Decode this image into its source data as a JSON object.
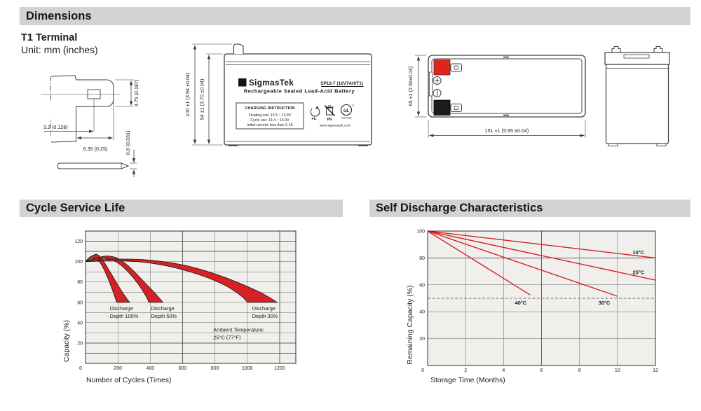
{
  "colors": {
    "header_bar_bg": "#d2d2d2",
    "chart_bg": "#f0efec",
    "grid": "#636363",
    "red": "#d42125",
    "terminal_red": "#e2231a",
    "terminal_black": "#1c1c1c",
    "drawing_line": "#3d3d3d"
  },
  "title_bars": {
    "dimensions": "Dimensions",
    "cycle": "Cycle Service Life",
    "self_discharge": "Self Discharge Characteristics"
  },
  "dimensions_section": {
    "subtitle": "T1 Terminal",
    "unit_note": "Unit: mm (inches)",
    "terminal_drawing": {
      "height": "4.75 (0.187)",
      "hole_offset": "3.2 (0.126)",
      "width": "6.35 (0.25)",
      "thickness": "0.8 (0.031)"
    },
    "front_view": {
      "overall_height": "100 ±1 (3.94 ±0.04)",
      "case_height": "94 ±1 (3.70 ±0.04)"
    },
    "battery_label": {
      "logo_glyph": "Σ",
      "brand": "SigmasTek",
      "model": "SP12-7 (12V7AH/T1)",
      "type": "Rechargeable Sealed Lead-Acid Battery",
      "charging_title": "CHARGING INSTRUCTION",
      "charging_lines": [
        "Floating use: 13.5 ~ 13.8V",
        "Cycle use: 14.4 ~ 15.0V",
        "Initial current: less than 2.1A"
      ],
      "recycle_label": "Pb.",
      "bin_label": "Pb",
      "ul_text": "UL",
      "ul_reg": "®",
      "ul_code": "MH47829",
      "website": "www.sigmastek.com"
    },
    "top_view": {
      "width": "65 ±1 (2.56±0.04)",
      "length": "151 ±1 (5.95 ±0.04)"
    }
  },
  "chart_data": [
    {
      "type": "area",
      "title": "Cycle Service Life",
      "xlabel": "Number of Cycles (Times)",
      "ylabel": "Capacity (%)",
      "xlim": [
        0,
        1300
      ],
      "ylim": [
        0,
        130
      ],
      "x_grid_step": 200,
      "y_grid_step": 10,
      "x_ticks": [
        200,
        400,
        600,
        800,
        1000,
        1200
      ],
      "y_ticks": [
        20,
        40,
        60,
        80,
        100,
        120
      ],
      "origin_label": "0",
      "grid": true,
      "legend_position": "none",
      "series": [
        {
          "name": "Discharge Depth 100%",
          "upper": [
            [
              0,
              100
            ],
            [
              20,
              103.5
            ],
            [
              45,
              106
            ],
            [
              70,
              107
            ],
            [
              95,
              104
            ],
            [
              125,
              97
            ],
            [
              155,
              89
            ],
            [
              200,
              77
            ],
            [
              240,
              67
            ],
            [
              272,
              60
            ]
          ],
          "lower": [
            [
              0,
              100
            ],
            [
              18,
              102
            ],
            [
              40,
              103.5
            ],
            [
              65,
              103
            ],
            [
              90,
              99
            ],
            [
              115,
              92
            ],
            [
              140,
              83
            ],
            [
              162,
              74
            ],
            [
              180,
              66
            ],
            [
              193,
              60
            ]
          ]
        },
        {
          "name": "Discharge Depth 50%",
          "upper": [
            [
              0,
              100
            ],
            [
              40,
              102.5
            ],
            [
              90,
              104.5
            ],
            [
              140,
              105.5
            ],
            [
              195,
              103.5
            ],
            [
              255,
              97
            ],
            [
              315,
              88
            ],
            [
              375,
              78
            ],
            [
              435,
              68
            ],
            [
              478,
              60
            ]
          ],
          "lower": [
            [
              0,
              100
            ],
            [
              35,
              101.5
            ],
            [
              80,
              102.5
            ],
            [
              125,
              103
            ],
            [
              175,
              101
            ],
            [
              230,
              95
            ],
            [
              285,
              86
            ],
            [
              330,
              77
            ],
            [
              370,
              67
            ],
            [
              392,
              60
            ]
          ]
        },
        {
          "name": "Discharge Depth 30%",
          "upper": [
            [
              0,
              100
            ],
            [
              80,
              101.5
            ],
            [
              200,
              102.5
            ],
            [
              350,
              102
            ],
            [
              500,
              99.5
            ],
            [
              650,
              95
            ],
            [
              800,
              88
            ],
            [
              950,
              79
            ],
            [
              1090,
              69
            ],
            [
              1185,
              60
            ]
          ],
          "lower": [
            [
              0,
              100
            ],
            [
              70,
              100.5
            ],
            [
              180,
              101
            ],
            [
              320,
              100
            ],
            [
              460,
              97
            ],
            [
              600,
              92
            ],
            [
              740,
              85
            ],
            [
              870,
              76
            ],
            [
              965,
              66
            ],
            [
              1000,
              60
            ]
          ]
        }
      ],
      "annotations": [
        {
          "lines": [
            "Discharge",
            "Depth 100%"
          ],
          "x": 150,
          "y": 57
        },
        {
          "lines": [
            "Discharge",
            "Depth 50%"
          ],
          "x": 405,
          "y": 57
        },
        {
          "lines": [
            "Discharge",
            "Depth 30%"
          ],
          "x": 1030,
          "y": 57
        },
        {
          "lines": [
            "Ambient Temperature:",
            "25°C (77°F)"
          ],
          "x": 790,
          "y": 36
        }
      ]
    },
    {
      "type": "line",
      "title": "Self Discharge Characteristics",
      "xlabel": "Storage Time (Months)",
      "ylabel": "Remaining Capacity (%)",
      "xlim": [
        0,
        12
      ],
      "ylim": [
        0,
        100
      ],
      "x_grid_step": 2,
      "y_grid_step": 20,
      "x_ticks": [
        2,
        4,
        6,
        8,
        10,
        12
      ],
      "y_ticks": [
        20,
        40,
        60,
        80,
        100
      ],
      "origin_label": "0",
      "grid": true,
      "legend_position": "inline-labels",
      "dashed_line_y": 50,
      "series": [
        {
          "name": "10°C",
          "points": [
            [
              0,
              100
            ],
            [
              12,
              80
            ]
          ],
          "label_pos": [
            10.8,
            84.5
          ]
        },
        {
          "name": "25°C",
          "points": [
            [
              0,
              100
            ],
            [
              12,
              63.5
            ]
          ],
          "label_pos": [
            10.8,
            69.5
          ]
        },
        {
          "name": "30°C",
          "points": [
            [
              0,
              100
            ],
            [
              10,
              51.5
            ]
          ],
          "label_pos": [
            9.0,
            47
          ]
        },
        {
          "name": "40°C",
          "points": [
            [
              0,
              100
            ],
            [
              5.4,
              52.5
            ]
          ],
          "label_pos": [
            4.6,
            47
          ]
        }
      ]
    }
  ]
}
